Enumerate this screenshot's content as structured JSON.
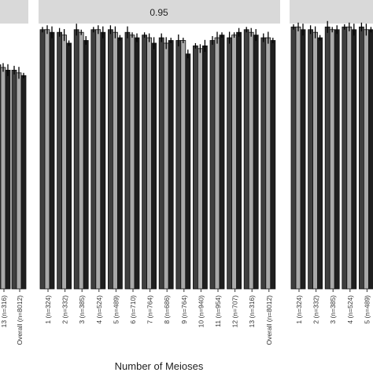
{
  "figure": {
    "xlabel": "Number of Meioses",
    "facets": [
      {
        "strip_label": ""
      },
      {
        "strip_label": "0.95"
      },
      {
        "strip_label": ""
      }
    ]
  },
  "chart_data": [
    {
      "type": "bar",
      "title": "",
      "xlabel": "Number of Meioses",
      "visible_categories": [
        "13 (n=316)",
        "Overall (n=8012)"
      ],
      "values_tail": [
        0.83,
        0.81
      ],
      "note": "facet partially cropped on left edge"
    },
    {
      "type": "bar",
      "title": "0.95",
      "xlabel": "Number of Meioses",
      "ylabel": "",
      "categories": [
        "1 (n=324)",
        "2 (n=332)",
        "3 (n=385)",
        "4 (n=524)",
        "5 (n=489)",
        "6 (n=710)",
        "7 (n=764)",
        "8 (n=686)",
        "9 (n=764)",
        "10 (n=940)",
        "11 (n=954)",
        "12 (n=707)",
        "13 (n=316)",
        "Overall (n=8012)"
      ],
      "series": [
        {
          "name": "",
          "color": "#3f3f3f",
          "values": [
            0.96,
            0.95,
            0.96,
            0.96,
            0.96,
            0.95,
            0.94,
            0.93,
            0.92,
            0.9,
            0.92,
            0.93,
            0.96,
            0.93
          ]
        },
        {
          "name": "",
          "color": "#a9a9a9",
          "values": [
            0.96,
            0.94,
            0.95,
            0.96,
            0.95,
            0.94,
            0.93,
            0.91,
            0.92,
            0.89,
            0.93,
            0.94,
            0.95,
            0.93
          ]
        },
        {
          "name": "",
          "color": "#1f1f1f",
          "values": [
            0.95,
            0.91,
            0.92,
            0.95,
            0.93,
            0.93,
            0.91,
            0.92,
            0.87,
            0.9,
            0.94,
            0.95,
            0.94,
            0.92
          ]
        }
      ],
      "grid": false
    },
    {
      "type": "bar",
      "title": "",
      "xlabel": "Number of Meioses",
      "visible_categories": [
        "1 (n=324)",
        "2 (n=332)",
        "3 (n=385)",
        "4 (n=524)",
        "5 (n=489)"
      ],
      "series": [
        {
          "name": "",
          "color": "#3f3f3f",
          "values": [
            0.97,
            0.96,
            0.97,
            0.97,
            0.97
          ]
        },
        {
          "name": "",
          "color": "#a9a9a9",
          "values": [
            0.97,
            0.95,
            0.96,
            0.97,
            0.96
          ]
        },
        {
          "name": "",
          "color": "#1f1f1f",
          "values": [
            0.96,
            0.93,
            0.96,
            0.96,
            0.96
          ]
        }
      ],
      "note": "facet partially cropped on right edge"
    }
  ]
}
